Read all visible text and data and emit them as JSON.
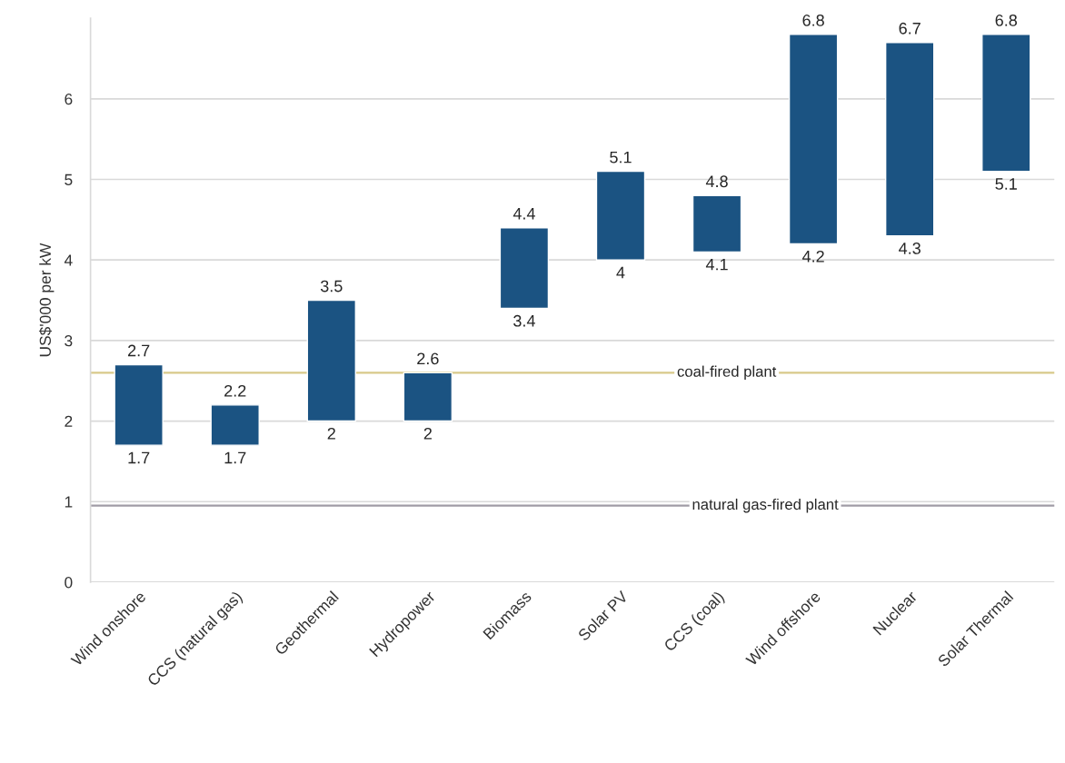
{
  "chart_data": {
    "type": "bar",
    "ylabel": "US$'000 per kW",
    "categories": [
      "Wind onshore",
      "CCS (natural gas)",
      "Geothermal",
      "Hydropower",
      "Biomass",
      "Solar PV",
      "CCS (coal)",
      "Wind offshore",
      "Nuclear",
      "Solar Thermal"
    ],
    "base": [
      1.7,
      1.7,
      2.0,
      2.0,
      3.4,
      4.0,
      4.1,
      4.2,
      4.3,
      5.1
    ],
    "values": [
      1.0,
      0.5,
      1.5,
      0.6,
      1.0,
      1.1,
      0.7,
      2.6,
      2.4,
      1.7
    ],
    "color": "#1b5382",
    "ylim": [
      0,
      7
    ],
    "yticks": [
      0,
      1,
      2,
      3,
      4,
      5,
      6
    ],
    "grid": "y",
    "ref_lines": [
      {
        "axis": "y",
        "value": 2.6,
        "label": "coal-fired plant",
        "color": "#d8c98a"
      },
      {
        "axis": "y",
        "value": 0.95,
        "label": "natural gas-fired plant",
        "color": "#a09ca6"
      }
    ],
    "annotations": [
      {
        "text": "2.7",
        "x": "Wind onshore",
        "y": 2.7
      },
      {
        "text": "1.7",
        "x": "Wind onshore",
        "y": 1.7
      },
      {
        "text": "2.2",
        "x": "CCS (natural gas)",
        "y": 2.2
      },
      {
        "text": "1.7",
        "x": "CCS (natural gas)",
        "y": 1.7
      },
      {
        "text": "3.5",
        "x": "Geothermal",
        "y": 3.5
      },
      {
        "text": "2",
        "x": "Geothermal",
        "y": 2
      },
      {
        "text": "2.6",
        "x": "Hydropower",
        "y": 2.6
      },
      {
        "text": "2",
        "x": "Hydropower",
        "y": 2
      },
      {
        "text": "4.4",
        "x": "Biomass",
        "y": 4.4
      },
      {
        "text": "3.4",
        "x": "Biomass",
        "y": 3.4
      },
      {
        "text": "5.1",
        "x": "Solar PV",
        "y": 5.1
      },
      {
        "text": "4",
        "x": "Solar PV",
        "y": 4
      },
      {
        "text": "4.8",
        "x": "CCS (coal)",
        "y": 4.8
      },
      {
        "text": "4.1",
        "x": "CCS (coal)",
        "y": 4.1
      },
      {
        "text": "6.8",
        "x": "Wind offshore",
        "y": 6.8
      },
      {
        "text": "4.2",
        "x": "Wind offshore",
        "y": 4.2
      },
      {
        "text": "6.7",
        "x": "Nuclear",
        "y": 6.7
      },
      {
        "text": "4.3",
        "x": "Nuclear",
        "y": 4.3
      },
      {
        "text": "6.8",
        "x": "Solar Thermal",
        "y": 6.8
      },
      {
        "text": "5.1",
        "x": "Solar Thermal",
        "y": 5.1
      }
    ]
  }
}
